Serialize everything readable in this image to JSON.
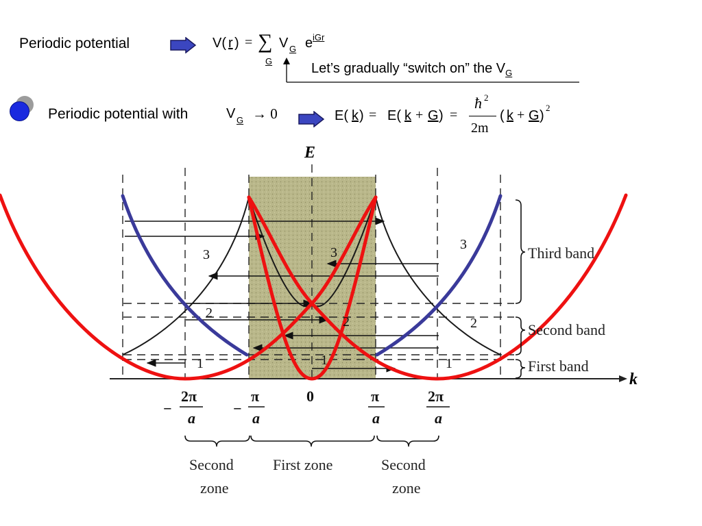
{
  "header": {
    "periodic_potential": "Periodic potential",
    "formula1": {
      "lhs_v": "V(",
      "lhs_r": "r",
      "lhs_close": ")",
      "eq": "=",
      "sum": "∑",
      "sum_sub": "G",
      "vg_v": "V",
      "vg_sub": "G",
      "exp_e": "e",
      "exp_sup": "iGr"
    },
    "switch_on_text": "Let’s gradually “switch on” the V",
    "switch_on_sub": "G",
    "periodic_with": "Periodic potential with",
    "vg_limit_v": "V",
    "vg_limit_sub": "G",
    "vg_limit_arrow": "→ 0",
    "formula2": {
      "E_k": "E(",
      "k1": "k",
      "close1": ")",
      "eq1": "=",
      "E_kG": "E(",
      "k2": "k",
      "plus1": "+",
      "G1": "G",
      "close2": ")",
      "eq2": "=",
      "hbar": "ħ",
      "hbar_sup": "2",
      "denom": "2m",
      "open3": "(",
      "k3": "k",
      "plus2": "+",
      "G2": "G",
      "close3": ")",
      "sq": "2"
    }
  },
  "diagram": {
    "e_axis": "E",
    "k_axis": "k",
    "band_numbers": [
      "3",
      "3",
      "3",
      "2",
      "2",
      "2",
      "1",
      "1",
      "1"
    ],
    "band_labels": [
      "Third band",
      "Second band",
      "First band"
    ],
    "tick_labels": {
      "minus": "−",
      "two_pi": "2π",
      "pi": "π",
      "zero": "0",
      "a": "a"
    },
    "zone_labels": {
      "second_zone_line1": "Second",
      "second_zone_line2": "zone",
      "first_zone": "First zone"
    },
    "colors": {
      "red_parabola": "#ee1111",
      "blue_parabola": "#3a3a9a",
      "shaded_zone": "#b9b78a",
      "bullet_blue": "#1a2adf",
      "bullet_gray": "#9c9c9c"
    }
  }
}
